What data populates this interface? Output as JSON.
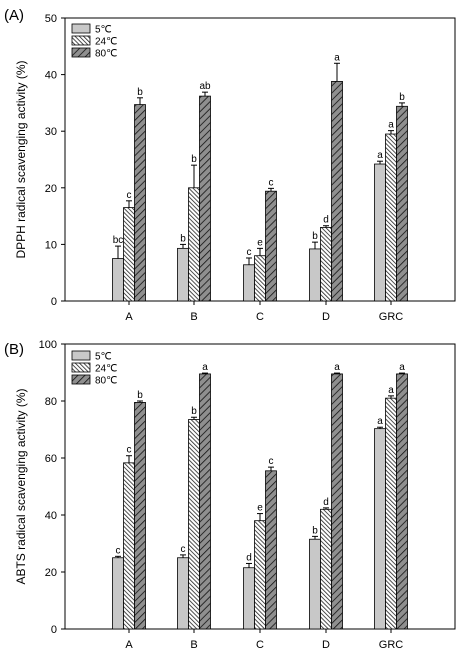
{
  "chart_data": [
    {
      "panel_label": "(A)",
      "type": "bar",
      "categories": [
        "A",
        "B",
        "C",
        "D",
        "GRC"
      ],
      "ylabel": "DPPH radical scavenging activity (%)",
      "ylim": [
        0,
        50
      ],
      "yticks": [
        "0",
        "10",
        "20",
        "30",
        "40",
        "50"
      ],
      "legend_placement": "top-left",
      "series": [
        {
          "name": "5℃",
          "values": [
            7.5,
            9.3,
            6.4,
            9.2,
            24.2
          ],
          "errors": [
            2.2,
            0.7,
            1.2,
            1.2,
            0.5
          ],
          "letters": [
            "bc",
            "b",
            "c",
            "b",
            "a"
          ]
        },
        {
          "name": "24℃",
          "values": [
            16.5,
            20.0,
            8.0,
            13.0,
            29.5
          ],
          "errors": [
            1.2,
            4.0,
            1.3,
            0.3,
            0.6
          ],
          "letters": [
            "c",
            "b",
            "e",
            "d",
            "a"
          ]
        },
        {
          "name": "80℃",
          "values": [
            34.7,
            36.2,
            19.4,
            38.8,
            34.4
          ],
          "errors": [
            1.2,
            0.7,
            0.5,
            3.2,
            0.6
          ],
          "letters": [
            "b",
            "ab",
            "c",
            "a",
            "b"
          ]
        }
      ]
    },
    {
      "panel_label": "(B)",
      "type": "bar",
      "categories": [
        "A",
        "B",
        "C",
        "D",
        "GRC"
      ],
      "ylabel": "ABTS radical scavenging activity (%)",
      "ylim": [
        0,
        100
      ],
      "yticks": [
        "0",
        "20",
        "40",
        "60",
        "80",
        "100"
      ],
      "legend_placement": "top-left",
      "series": [
        {
          "name": "5℃",
          "values": [
            25.0,
            25.0,
            21.5,
            31.5,
            70.3
          ],
          "errors": [
            0.5,
            1.0,
            1.5,
            1.0,
            0.5
          ],
          "letters": [
            "c",
            "c",
            "d",
            "b",
            "a"
          ]
        },
        {
          "name": "24℃",
          "values": [
            58.3,
            73.5,
            38.0,
            42.0,
            81.0
          ],
          "errors": [
            2.5,
            0.8,
            2.5,
            0.5,
            0.8
          ],
          "letters": [
            "c",
            "b",
            "e",
            "d",
            "a"
          ]
        },
        {
          "name": "80℃",
          "values": [
            79.5,
            89.5,
            55.5,
            89.5,
            89.5
          ],
          "errors": [
            0.5,
            0.3,
            1.3,
            0.3,
            0.3
          ],
          "letters": [
            "b",
            "a",
            "c",
            "a",
            "a"
          ]
        }
      ]
    }
  ]
}
